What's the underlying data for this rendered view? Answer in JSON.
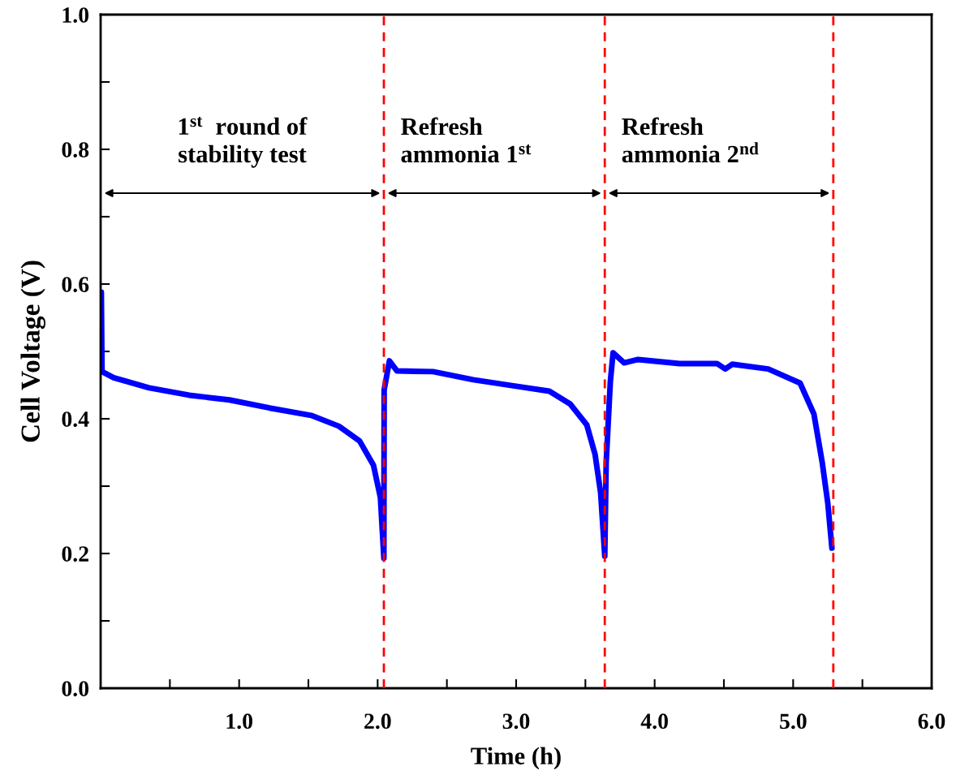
{
  "chart_data": {
    "type": "line",
    "xlabel": "Time (h)",
    "ylabel": "Cell Voltage (V)",
    "xlim": [
      0,
      6
    ],
    "ylim": [
      0,
      1
    ],
    "xticks": [
      {
        "value": 0.5,
        "label": null
      },
      {
        "value": 1,
        "label": "1.0"
      },
      {
        "value": 1.5,
        "label": null
      },
      {
        "value": 2,
        "label": "2.0"
      },
      {
        "value": 2.5,
        "label": null
      },
      {
        "value": 3,
        "label": "3.0"
      },
      {
        "value": 3.5,
        "label": null
      },
      {
        "value": 4,
        "label": "4.0"
      },
      {
        "value": 4.5,
        "label": null
      },
      {
        "value": 5,
        "label": "5.0"
      },
      {
        "value": 5.5,
        "label": null
      },
      {
        "value": 6,
        "label": "6.0"
      }
    ],
    "yticks": [
      {
        "value": 0,
        "label": "0.0"
      },
      {
        "value": 0.1,
        "label": null
      },
      {
        "value": 0.2,
        "label": "0.2"
      },
      {
        "value": 0.3,
        "label": null
      },
      {
        "value": 0.4,
        "label": "0.4"
      },
      {
        "value": 0.5,
        "label": null
      },
      {
        "value": 0.6,
        "label": "0.6"
      },
      {
        "value": 0.7,
        "label": null
      },
      {
        "value": 0.8,
        "label": "0.8"
      },
      {
        "value": 0.9,
        "label": null
      },
      {
        "value": 1,
        "label": "1.0"
      }
    ],
    "grid": false,
    "marker": "none",
    "line_style": "solid",
    "series": [
      {
        "color": "#0000ff",
        "x": [
          0.005,
          0.01,
          0.094,
          0.35,
          0.64,
          0.93,
          1.22,
          1.52,
          1.72,
          1.87,
          1.97,
          2.02,
          2.045,
          2.047,
          2.085,
          2.14,
          2.4,
          2.69,
          2.98,
          3.24,
          3.39,
          3.51,
          3.57,
          3.61,
          3.64,
          3.65,
          3.68,
          3.7,
          3.78,
          3.88,
          4.18,
          4.45,
          4.51,
          4.56,
          4.82,
          5.05,
          5.15,
          5.21,
          5.25,
          5.28
        ],
        "values": [
          0.588,
          0.47,
          0.461,
          0.446,
          0.435,
          0.428,
          0.416,
          0.405,
          0.389,
          0.367,
          0.331,
          0.283,
          0.193,
          0.443,
          0.486,
          0.471,
          0.47,
          0.458,
          0.449,
          0.441,
          0.422,
          0.391,
          0.347,
          0.29,
          0.196,
          0.335,
          0.455,
          0.498,
          0.483,
          0.488,
          0.482,
          0.482,
          0.474,
          0.481,
          0.474,
          0.453,
          0.407,
          0.335,
          0.275,
          0.208
        ]
      }
    ],
    "ref_lines": [
      {
        "axis": "x",
        "value": 2.045,
        "color": "#ff0000",
        "line_style": "dashed"
      },
      {
        "axis": "x",
        "value": 3.64,
        "color": "#ff0000",
        "line_style": "dashed"
      },
      {
        "axis": "x",
        "value": 5.29,
        "color": "#ff0000",
        "line_style": "dashed"
      }
    ],
    "annotations": [
      "1$^{st}$  round of\nstability test",
      "Refresh\nammonia 1$^{st}$",
      "Refresh\nammonia 2$^{nd}$"
    ]
  }
}
